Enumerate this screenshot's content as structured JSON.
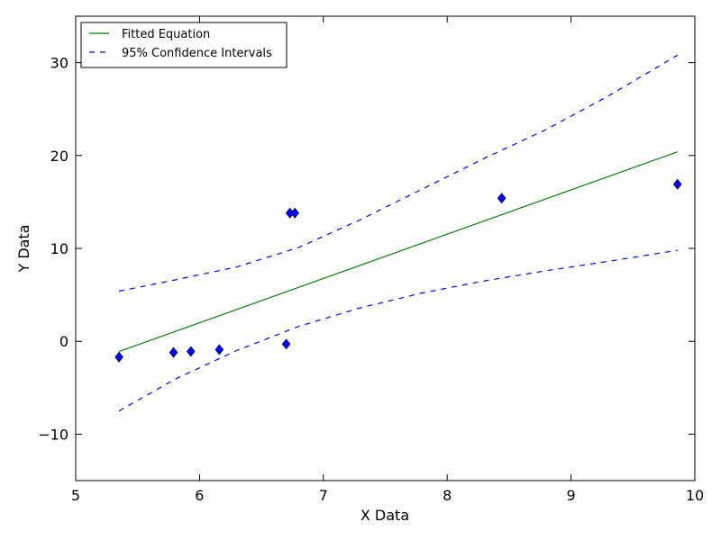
{
  "chart_data": {
    "type": "scatter",
    "title": "",
    "xlabel": "X Data",
    "ylabel": "Y Data",
    "xlim": [
      5,
      10
    ],
    "ylim": [
      -15,
      35
    ],
    "xticks": [
      5,
      6,
      7,
      8,
      9,
      10
    ],
    "xtick_labels": [
      "5",
      "6",
      "7",
      "8",
      "9",
      "10"
    ],
    "yticks": [
      -10,
      0,
      10,
      20,
      30
    ],
    "ytick_labels": [
      "−10",
      "0",
      "10",
      "20",
      "30"
    ],
    "grid": false,
    "legend_position": "top-left",
    "series": [
      {
        "name": "",
        "kind": "scatter",
        "marker": "diamond",
        "color": "#0000ff",
        "x": [
          5.35,
          5.79,
          5.93,
          6.16,
          6.7,
          6.73,
          6.77,
          8.44,
          9.86
        ],
        "y": [
          -1.7,
          -1.2,
          -1.1,
          -0.9,
          -0.3,
          13.8,
          13.8,
          15.4,
          16.9
        ]
      },
      {
        "name": "Fitted Equation",
        "kind": "line",
        "style": "solid",
        "color": "#008000",
        "x": [
          5.35,
          9.86
        ],
        "y": [
          -1.1,
          20.4
        ]
      },
      {
        "name": "95% Confidence Intervals",
        "kind": "line",
        "style": "dashed",
        "color": "#0000ff",
        "x": [
          5.35,
          5.8,
          6.3,
          6.8,
          7.3,
          7.8,
          8.3,
          8.8,
          9.3,
          9.86
        ],
        "y": [
          5.4,
          6.6,
          8.0,
          10.1,
          13.1,
          16.4,
          19.7,
          22.8,
          26.4,
          30.8
        ]
      },
      {
        "name": "",
        "kind": "line",
        "style": "dashed",
        "color": "#0000ff",
        "x": [
          5.35,
          5.8,
          6.3,
          6.8,
          7.3,
          7.8,
          8.3,
          8.8,
          9.3,
          9.86
        ],
        "y": [
          -7.5,
          -4.1,
          -1.0,
          1.6,
          3.6,
          5.2,
          6.5,
          7.6,
          8.6,
          9.8
        ]
      }
    ]
  }
}
